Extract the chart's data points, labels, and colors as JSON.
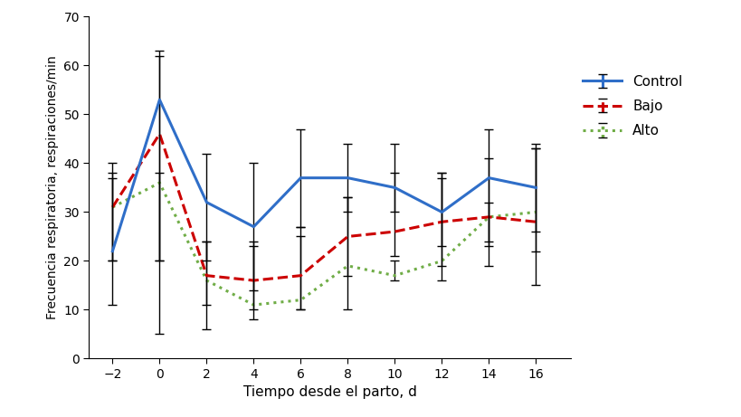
{
  "x": [
    -2,
    0,
    2,
    4,
    6,
    8,
    10,
    12,
    14,
    16
  ],
  "control_y": [
    22,
    53,
    32,
    27,
    37,
    37,
    35,
    30,
    37,
    35
  ],
  "control_yerr_upper": [
    18,
    10,
    10,
    13,
    10,
    7,
    9,
    8,
    10,
    9
  ],
  "control_yerr_lower": [
    11,
    48,
    12,
    13,
    10,
    7,
    5,
    7,
    14,
    9
  ],
  "bajo_y": [
    31,
    46,
    17,
    16,
    17,
    25,
    26,
    28,
    29,
    28
  ],
  "bajo_yerr_upper": [
    6,
    16,
    7,
    8,
    8,
    8,
    12,
    9,
    12,
    15
  ],
  "bajo_yerr_lower": [
    11,
    26,
    11,
    8,
    7,
    8,
    5,
    9,
    10,
    13
  ],
  "alto_y": [
    31,
    36,
    16,
    11,
    12,
    19,
    17,
    20,
    29,
    30
  ],
  "alto_yerr_upper": [
    7,
    2,
    8,
    12,
    15,
    14,
    3,
    18,
    3,
    13
  ],
  "alto_yerr_lower": [
    11,
    16,
    5,
    1,
    2,
    9,
    1,
    4,
    5,
    8
  ],
  "control_color": "#2f6ec8",
  "bajo_color": "#cc0000",
  "alto_color": "#70ad47",
  "xlabel": "Tiempo desde el parto, d",
  "ylabel": "Frecuencia respiratoria, respiraciones/min",
  "ylim": [
    0,
    70
  ],
  "xlim": [
    -3,
    17.5
  ],
  "xticks": [
    -2,
    0,
    2,
    4,
    6,
    8,
    10,
    12,
    14,
    16
  ],
  "yticks": [
    0,
    10,
    20,
    30,
    40,
    50,
    60,
    70
  ],
  "legend_labels": [
    "Control",
    "Bajo",
    "Alto"
  ]
}
